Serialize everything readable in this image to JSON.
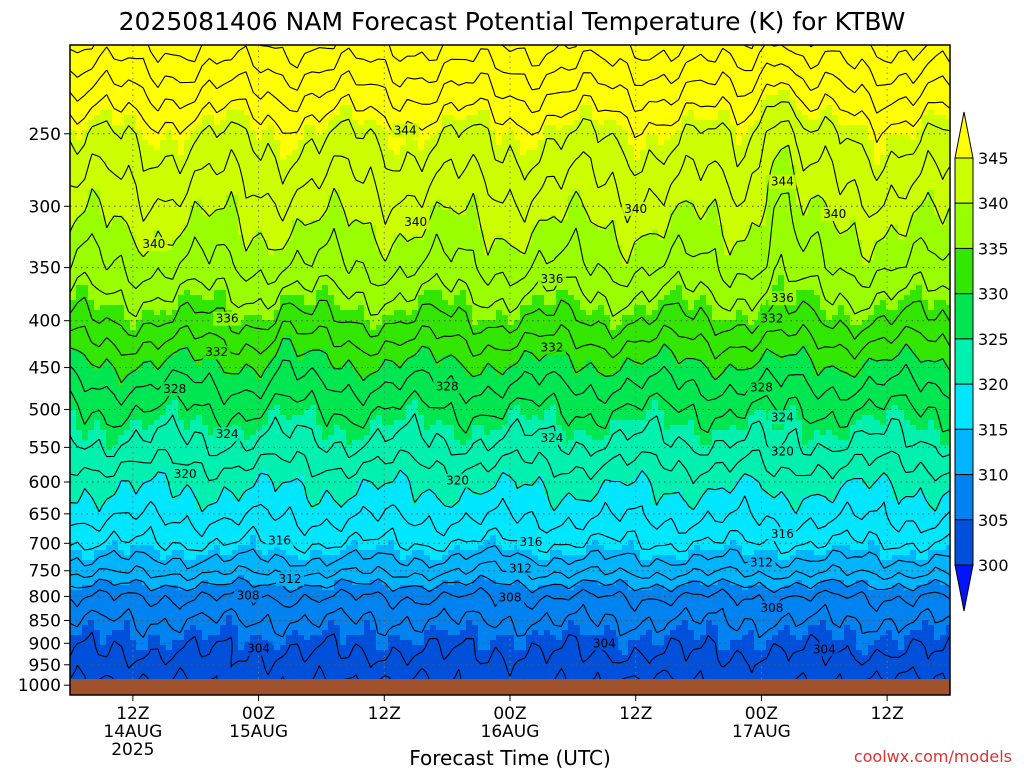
{
  "chart_data": {
    "type": "contour",
    "title": "2025081406 NAM Forecast Potential Temperature (K) for KTBW",
    "xlabel": "Forecast Time (UTC)",
    "ylabel": "",
    "credit": "coolwx.com/models",
    "y_axis": {
      "scale": "log",
      "range": [
        1025,
        200
      ],
      "ticks": [
        "250",
        "300",
        "350",
        "400",
        "450",
        "500",
        "550",
        "600",
        "650",
        "700",
        "750",
        "800",
        "850",
        "900",
        "950",
        "1000"
      ]
    },
    "x_axis": {
      "range_hours": [
        0,
        84
      ],
      "ticks": [
        {
          "hour": 6,
          "lines": [
            "12Z",
            "14AUG",
            "2025"
          ]
        },
        {
          "hour": 18,
          "lines": [
            "00Z",
            "15AUG"
          ]
        },
        {
          "hour": 30,
          "lines": [
            "12Z"
          ]
        },
        {
          "hour": 42,
          "lines": [
            "00Z",
            "16AUG"
          ]
        },
        {
          "hour": 54,
          "lines": [
            "12Z"
          ]
        },
        {
          "hour": 66,
          "lines": [
            "00Z",
            "17AUG"
          ]
        },
        {
          "hour": 78,
          "lines": [
            "12Z"
          ]
        }
      ]
    },
    "grid": true,
    "colorbar": {
      "placement": "right",
      "levels": [
        "345",
        "340",
        "335",
        "330",
        "325",
        "320",
        "315",
        "310",
        "305",
        "300"
      ],
      "colors": [
        "#ffff00",
        "#ccff00",
        "#99ff00",
        "#33e600",
        "#00e650",
        "#00f0b0",
        "#00e6ff",
        "#00b4ff",
        "#0082f0",
        "#0050dc",
        "#0014ff"
      ]
    },
    "contour_levels": [
      300,
      302,
      304,
      306,
      308,
      310,
      312,
      314,
      316,
      318,
      320,
      322,
      324,
      326,
      328,
      330,
      332,
      334,
      336,
      338,
      340,
      342,
      344,
      346,
      348,
      350,
      352
    ],
    "profile": [
      {
        "pressure": 1000,
        "theta": 302.5
      },
      {
        "pressure": 950,
        "theta": 303.4
      },
      {
        "pressure": 900,
        "theta": 304.5
      },
      {
        "pressure": 850,
        "theta": 306.0
      },
      {
        "pressure": 800,
        "theta": 308.0
      },
      {
        "pressure": 750,
        "theta": 312.5
      },
      {
        "pressure": 700,
        "theta": 316.0
      },
      {
        "pressure": 650,
        "theta": 318.5
      },
      {
        "pressure": 600,
        "theta": 320.5
      },
      {
        "pressure": 550,
        "theta": 323.5
      },
      {
        "pressure": 500,
        "theta": 326.0
      },
      {
        "pressure": 450,
        "theta": 329.5
      },
      {
        "pressure": 400,
        "theta": 334.0
      },
      {
        "pressure": 350,
        "theta": 338.0
      },
      {
        "pressure": 300,
        "theta": 341.0
      },
      {
        "pressure": 250,
        "theta": 344.5
      },
      {
        "pressure": 200,
        "theta": 352.0
      }
    ],
    "contour_labels": [
      {
        "text": "344",
        "hour": 32,
        "pressure": 248
      },
      {
        "text": "344",
        "hour": 68,
        "pressure": 282
      },
      {
        "text": "340",
        "hour": 8,
        "pressure": 330
      },
      {
        "text": "340",
        "hour": 33,
        "pressure": 312
      },
      {
        "text": "340",
        "hour": 54,
        "pressure": 302
      },
      {
        "text": "340",
        "hour": 73,
        "pressure": 306
      },
      {
        "text": "336",
        "hour": 46,
        "pressure": 360
      },
      {
        "text": "336",
        "hour": 68,
        "pressure": 378
      },
      {
        "text": "336",
        "hour": 15,
        "pressure": 398
      },
      {
        "text": "332",
        "hour": 67,
        "pressure": 398
      },
      {
        "text": "332",
        "hour": 14,
        "pressure": 433
      },
      {
        "text": "332",
        "hour": 46,
        "pressure": 428
      },
      {
        "text": "328",
        "hour": 10,
        "pressure": 475
      },
      {
        "text": "328",
        "hour": 36,
        "pressure": 472
      },
      {
        "text": "328",
        "hour": 66,
        "pressure": 473
      },
      {
        "text": "324",
        "hour": 15,
        "pressure": 532
      },
      {
        "text": "324",
        "hour": 46,
        "pressure": 537
      },
      {
        "text": "324",
        "hour": 68,
        "pressure": 510
      },
      {
        "text": "320",
        "hour": 11,
        "pressure": 588
      },
      {
        "text": "320",
        "hour": 37,
        "pressure": 598
      },
      {
        "text": "320",
        "hour": 68,
        "pressure": 556
      },
      {
        "text": "316",
        "hour": 20,
        "pressure": 695
      },
      {
        "text": "316",
        "hour": 44,
        "pressure": 698
      },
      {
        "text": "316",
        "hour": 68,
        "pressure": 684
      },
      {
        "text": "312",
        "hour": 21,
        "pressure": 766
      },
      {
        "text": "312",
        "hour": 43,
        "pressure": 746
      },
      {
        "text": "312",
        "hour": 66,
        "pressure": 735
      },
      {
        "text": "308",
        "hour": 17,
        "pressure": 798
      },
      {
        "text": "308",
        "hour": 42,
        "pressure": 802
      },
      {
        "text": "308",
        "hour": 67,
        "pressure": 824
      },
      {
        "text": "304",
        "hour": 18,
        "pressure": 912
      },
      {
        "text": "304",
        "hour": 51,
        "pressure": 900
      },
      {
        "text": "304",
        "hour": 72,
        "pressure": 914
      }
    ]
  }
}
